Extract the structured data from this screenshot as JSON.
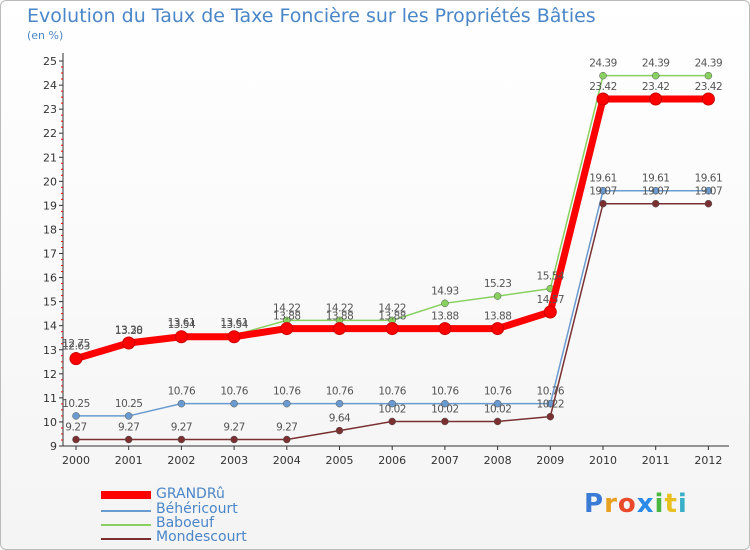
{
  "chart_data": {
    "type": "line",
    "title": "Evolution du Taux de Taxe Foncière sur les Propriétés Bâties",
    "unit_label": "(en %)",
    "xlabel": "",
    "ylabel": "",
    "categories": [
      "2000",
      "2001",
      "2002",
      "2003",
      "2004",
      "2005",
      "2006",
      "2007",
      "2008",
      "2009",
      "2010",
      "2011",
      "2012"
    ],
    "y_ticks": [
      "9",
      "10",
      "11",
      "12",
      "13",
      "14",
      "15",
      "16",
      "17",
      "18",
      "19",
      "20",
      "21",
      "22",
      "23",
      "24",
      "25"
    ],
    "ylim": [
      9,
      25
    ],
    "grid": false,
    "series": [
      {
        "name": "GRANDRû",
        "color": "#ff0000",
        "values": [
          12.63,
          13.28,
          13.54,
          13.54,
          13.88,
          13.88,
          13.88,
          13.88,
          13.88,
          14.57,
          23.42,
          23.42,
          23.42
        ],
        "labels": [
          "12.63",
          "13.28",
          "13.54",
          "13.54",
          "13.88",
          "13.88",
          "13.88",
          "13.88",
          "13.88",
          "14.57",
          "23.42",
          "23.42",
          "23.42"
        ]
      },
      {
        "name": "Béhéricourt",
        "color": "#6a9bd0",
        "values": [
          10.25,
          10.25,
          10.76,
          10.76,
          10.76,
          10.76,
          10.76,
          10.76,
          10.76,
          10.76,
          19.61,
          19.61,
          19.61
        ],
        "labels": [
          "10.25",
          "10.25",
          "10.76",
          "10.76",
          "10.76",
          "10.76",
          "10.76",
          "10.76",
          "10.76",
          "10.76",
          "19.61",
          "19.61",
          "19.61"
        ]
      },
      {
        "name": "Baboeuf",
        "color": "#88d060",
        "values": [
          12.75,
          13.3,
          13.61,
          13.61,
          14.22,
          14.22,
          14.22,
          14.93,
          15.23,
          15.54,
          24.39,
          24.39,
          24.39
        ],
        "labels": [
          "12.75",
          "13.30",
          "13.61",
          "13.61",
          "14.22",
          "14.22",
          "14.22",
          "14.93",
          "15.23",
          "15.54",
          "24.39",
          "24.39",
          "24.39"
        ]
      },
      {
        "name": "Mondescourt",
        "color": "#7a3030",
        "values": [
          9.27,
          9.27,
          9.27,
          9.27,
          9.27,
          9.64,
          10.02,
          10.02,
          10.02,
          10.22,
          19.07,
          19.07,
          19.07
        ],
        "labels": [
          "9.27",
          "9.27",
          "9.27",
          "9.27",
          "9.27",
          "9.64",
          "10.02",
          "10.02",
          "10.02",
          "10.22",
          "19.07",
          "19.07",
          "19.07"
        ]
      }
    ],
    "legend_position": "bottom-left"
  },
  "logo": {
    "p": "P",
    "r": "r",
    "o": "o",
    "x": "x",
    "i1": "i",
    "t": "t",
    "i2": "i"
  }
}
